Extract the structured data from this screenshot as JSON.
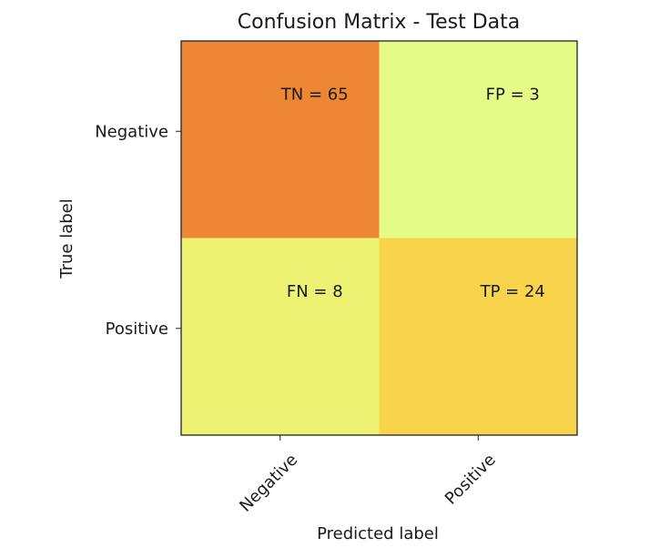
{
  "chart_data": {
    "type": "heatmap",
    "title": "Confusion Matrix - Test Data",
    "xlabel": "Predicted label",
    "ylabel": "True label",
    "x_categories": [
      "Negative",
      "Positive"
    ],
    "y_categories": [
      "Negative",
      "Positive"
    ],
    "values": [
      [
        65,
        3
      ],
      [
        8,
        24
      ]
    ],
    "cell_labels": [
      [
        "TN = 65",
        "FP = 3"
      ],
      [
        "FN = 8",
        "TP = 24"
      ]
    ],
    "colors": [
      [
        "#ee8733",
        "#e5fb87"
      ],
      [
        "#eef272",
        "#f8d44c"
      ]
    ],
    "x_tick_rotation_deg": 45,
    "grid": false,
    "legend": "none"
  }
}
